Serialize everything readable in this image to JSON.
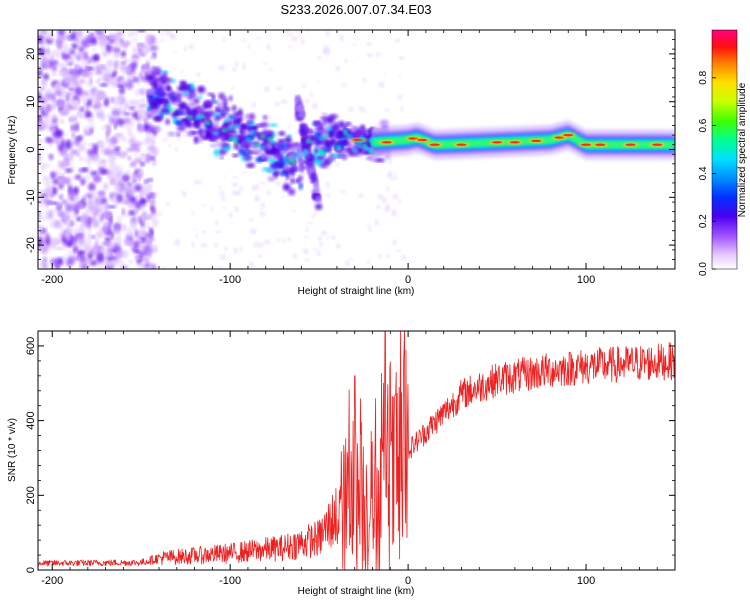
{
  "title": "S233.2026.007.07.34.E03",
  "chart_data": [
    {
      "type": "heatmap",
      "name": "spectrogram",
      "xlabel": "Height of straight line (km)",
      "ylabel": "Frequency (Hz)",
      "xlim": [
        -208,
        150
      ],
      "ylim": [
        -25,
        25
      ],
      "xticks": [
        -200,
        -100,
        0,
        100
      ],
      "yticks": [
        -20,
        -10,
        0,
        10,
        20
      ],
      "colorbar": {
        "label": "Normalized spectral amplitude",
        "range": [
          0,
          1
        ],
        "ticks": [
          0.0,
          0.2,
          0.4,
          0.6,
          0.8
        ],
        "colormap": "white-violet-blue-cyan-green-yellow-red-magenta"
      },
      "ridge": [
        {
          "x": -140,
          "f": 11
        },
        {
          "x": -120,
          "f": 7
        },
        {
          "x": -100,
          "f": 4
        },
        {
          "x": -80,
          "f": 1
        },
        {
          "x": -65,
          "f": -3
        },
        {
          "x": -55,
          "f": 0
        },
        {
          "x": -40,
          "f": 2
        },
        {
          "x": -20,
          "f": 1.5
        },
        {
          "x": 0,
          "f": 2
        },
        {
          "x": 5,
          "f": 2.5
        },
        {
          "x": 15,
          "f": 1
        },
        {
          "x": 50,
          "f": 1.5
        },
        {
          "x": 80,
          "f": 2
        },
        {
          "x": 90,
          "f": 3
        },
        {
          "x": 100,
          "f": 1
        },
        {
          "x": 150,
          "f": 1
        }
      ]
    },
    {
      "type": "line",
      "name": "snr",
      "color": "#ee2020",
      "xlabel": "Height of straight line (km)",
      "ylabel": "SNR (10 * v/v)",
      "xlim": [
        -208,
        150
      ],
      "ylim": [
        0,
        640
      ],
      "xticks": [
        -200,
        -100,
        0,
        100
      ],
      "yticks": [
        0,
        200,
        400,
        600
      ],
      "profile": [
        {
          "x": -208,
          "y": 18
        },
        {
          "x": -150,
          "y": 20
        },
        {
          "x": -140,
          "y": 32
        },
        {
          "x": -100,
          "y": 45
        },
        {
          "x": -70,
          "y": 60
        },
        {
          "x": -50,
          "y": 85
        },
        {
          "x": -40,
          "y": 150
        },
        {
          "x": -30,
          "y": 195
        },
        {
          "x": -20,
          "y": 170
        },
        {
          "x": -10,
          "y": 220
        },
        {
          "x": 0,
          "y": 320
        },
        {
          "x": 10,
          "y": 370
        },
        {
          "x": 20,
          "y": 420
        },
        {
          "x": 30,
          "y": 470
        },
        {
          "x": 50,
          "y": 510
        },
        {
          "x": 80,
          "y": 535
        },
        {
          "x": 100,
          "y": 545
        },
        {
          "x": 150,
          "y": 560
        }
      ],
      "spikes": [
        {
          "x": -30,
          "y": 520
        },
        {
          "x": -13,
          "y": 640
        },
        {
          "x": -7,
          "y": 470
        }
      ]
    }
  ]
}
